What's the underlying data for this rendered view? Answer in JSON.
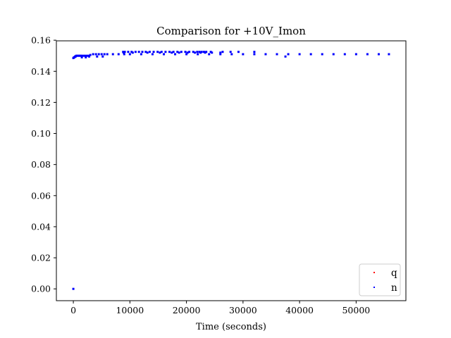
{
  "chart_data": {
    "type": "scatter",
    "title": "Comparison for +10V_Imon",
    "xlabel": "Time (seconds)",
    "ylabel": "",
    "xlim": [
      -3000,
      58800
    ],
    "ylim": [
      -0.0076,
      0.1596
    ],
    "xticks": [
      0,
      10000,
      20000,
      30000,
      40000,
      50000
    ],
    "xtick_labels": [
      "0",
      "10000",
      "20000",
      "30000",
      "40000",
      "50000"
    ],
    "yticks": [
      0.0,
      0.02,
      0.04,
      0.06,
      0.08,
      0.1,
      0.12,
      0.14,
      0.16
    ],
    "ytick_labels": [
      "0.00",
      "0.02",
      "0.04",
      "0.06",
      "0.08",
      "0.10",
      "0.12",
      "0.14",
      "0.16"
    ],
    "grid": false,
    "legend_position": "bottom-right",
    "series": [
      {
        "name": "q",
        "color": "#ff0000",
        "marker": "point",
        "points": []
      },
      {
        "name": "n",
        "color": "#0000ff",
        "marker": "point",
        "points": [
          [
            0,
            0.0
          ],
          [
            0,
            0.1485
          ],
          [
            100,
            0.149
          ],
          [
            200,
            0.149
          ],
          [
            300,
            0.1495
          ],
          [
            400,
            0.1495
          ],
          [
            500,
            0.15
          ],
          [
            700,
            0.15
          ],
          [
            900,
            0.15
          ],
          [
            1100,
            0.15
          ],
          [
            1300,
            0.15
          ],
          [
            1500,
            0.15
          ],
          [
            1800,
            0.15
          ],
          [
            2100,
            0.15
          ],
          [
            2400,
            0.15
          ],
          [
            2700,
            0.15
          ],
          [
            3000,
            0.1505
          ],
          [
            3500,
            0.151
          ],
          [
            4000,
            0.151
          ],
          [
            4500,
            0.151
          ],
          [
            5000,
            0.151
          ],
          [
            5500,
            0.151
          ],
          [
            6000,
            0.151
          ],
          [
            7000,
            0.151
          ],
          [
            8000,
            0.151
          ],
          [
            9000,
            0.151
          ],
          [
            10000,
            0.151
          ],
          [
            12000,
            0.151
          ],
          [
            14000,
            0.151
          ],
          [
            16000,
            0.151
          ],
          [
            18000,
            0.151
          ],
          [
            20000,
            0.151
          ],
          [
            22000,
            0.151
          ],
          [
            24000,
            0.151
          ],
          [
            26000,
            0.151
          ],
          [
            28000,
            0.151
          ],
          [
            30000,
            0.151
          ],
          [
            32000,
            0.151
          ],
          [
            34000,
            0.151
          ],
          [
            36000,
            0.151
          ],
          [
            38000,
            0.151
          ],
          [
            40000,
            0.151
          ],
          [
            42000,
            0.151
          ],
          [
            44000,
            0.151
          ],
          [
            46000,
            0.151
          ],
          [
            48000,
            0.151
          ],
          [
            50000,
            0.151
          ],
          [
            52000,
            0.151
          ],
          [
            54000,
            0.151
          ],
          [
            55800,
            0.151
          ],
          [
            1500,
            0.149
          ],
          [
            2200,
            0.149
          ],
          [
            2800,
            0.1495
          ],
          [
            4200,
            0.1495
          ],
          [
            5200,
            0.1495
          ],
          [
            37500,
            0.1495
          ],
          [
            8800,
            0.1525
          ],
          [
            9100,
            0.1525
          ],
          [
            9700,
            0.1525
          ],
          [
            10300,
            0.1525
          ],
          [
            11000,
            0.1525
          ],
          [
            11600,
            0.1525
          ],
          [
            12200,
            0.1525
          ],
          [
            12800,
            0.1525
          ],
          [
            13500,
            0.1525
          ],
          [
            14200,
            0.1525
          ],
          [
            14900,
            0.1525
          ],
          [
            15600,
            0.1525
          ],
          [
            16300,
            0.1525
          ],
          [
            17000,
            0.1525
          ],
          [
            17700,
            0.1525
          ],
          [
            18400,
            0.1525
          ],
          [
            19100,
            0.1525
          ],
          [
            19800,
            0.1525
          ],
          [
            20500,
            0.1525
          ],
          [
            21200,
            0.1525
          ],
          [
            21900,
            0.1525
          ],
          [
            22300,
            0.1525
          ],
          [
            22700,
            0.1525
          ],
          [
            23100,
            0.1525
          ],
          [
            23500,
            0.1525
          ],
          [
            24300,
            0.1525
          ],
          [
            26400,
            0.1525
          ],
          [
            27800,
            0.1525
          ],
          [
            29200,
            0.1525
          ],
          [
            32000,
            0.1525
          ],
          [
            8900,
            0.152
          ],
          [
            10500,
            0.152
          ],
          [
            13100,
            0.152
          ],
          [
            15300,
            0.152
          ],
          [
            17400,
            0.152
          ],
          [
            18700,
            0.152
          ],
          [
            20200,
            0.152
          ],
          [
            21500,
            0.152
          ],
          [
            22500,
            0.152
          ],
          [
            23300,
            0.152
          ],
          [
            24500,
            0.152
          ],
          [
            26000,
            0.152
          ]
        ]
      }
    ]
  }
}
